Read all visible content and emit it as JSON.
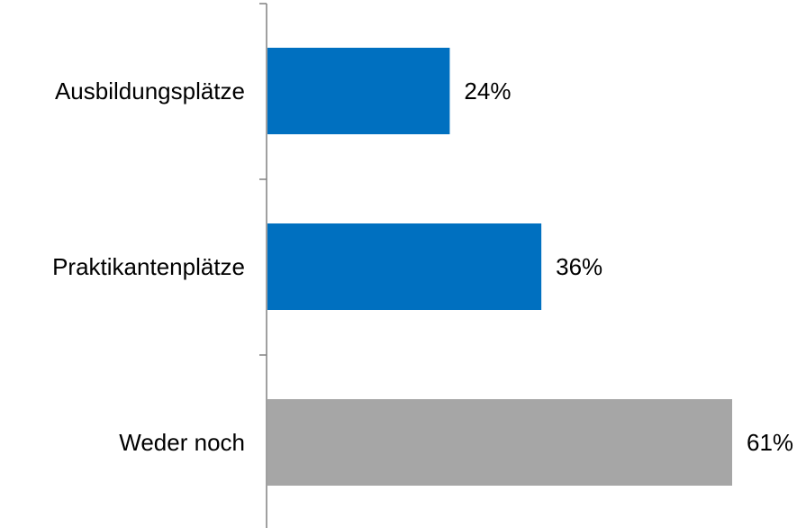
{
  "chart_data": {
    "type": "bar",
    "orientation": "horizontal",
    "categories": [
      "Ausbildungsplätze",
      "Praktikantenplätze",
      "Weder noch"
    ],
    "values": [
      24,
      36,
      61
    ],
    "value_labels": [
      "24%",
      "36%",
      "61%"
    ],
    "colors": [
      "#0070C0",
      "#0070C0",
      "#A6A6A6"
    ],
    "axis_color": "#808080",
    "xlim": [
      0,
      61
    ],
    "grid": false,
    "legend": "none"
  }
}
